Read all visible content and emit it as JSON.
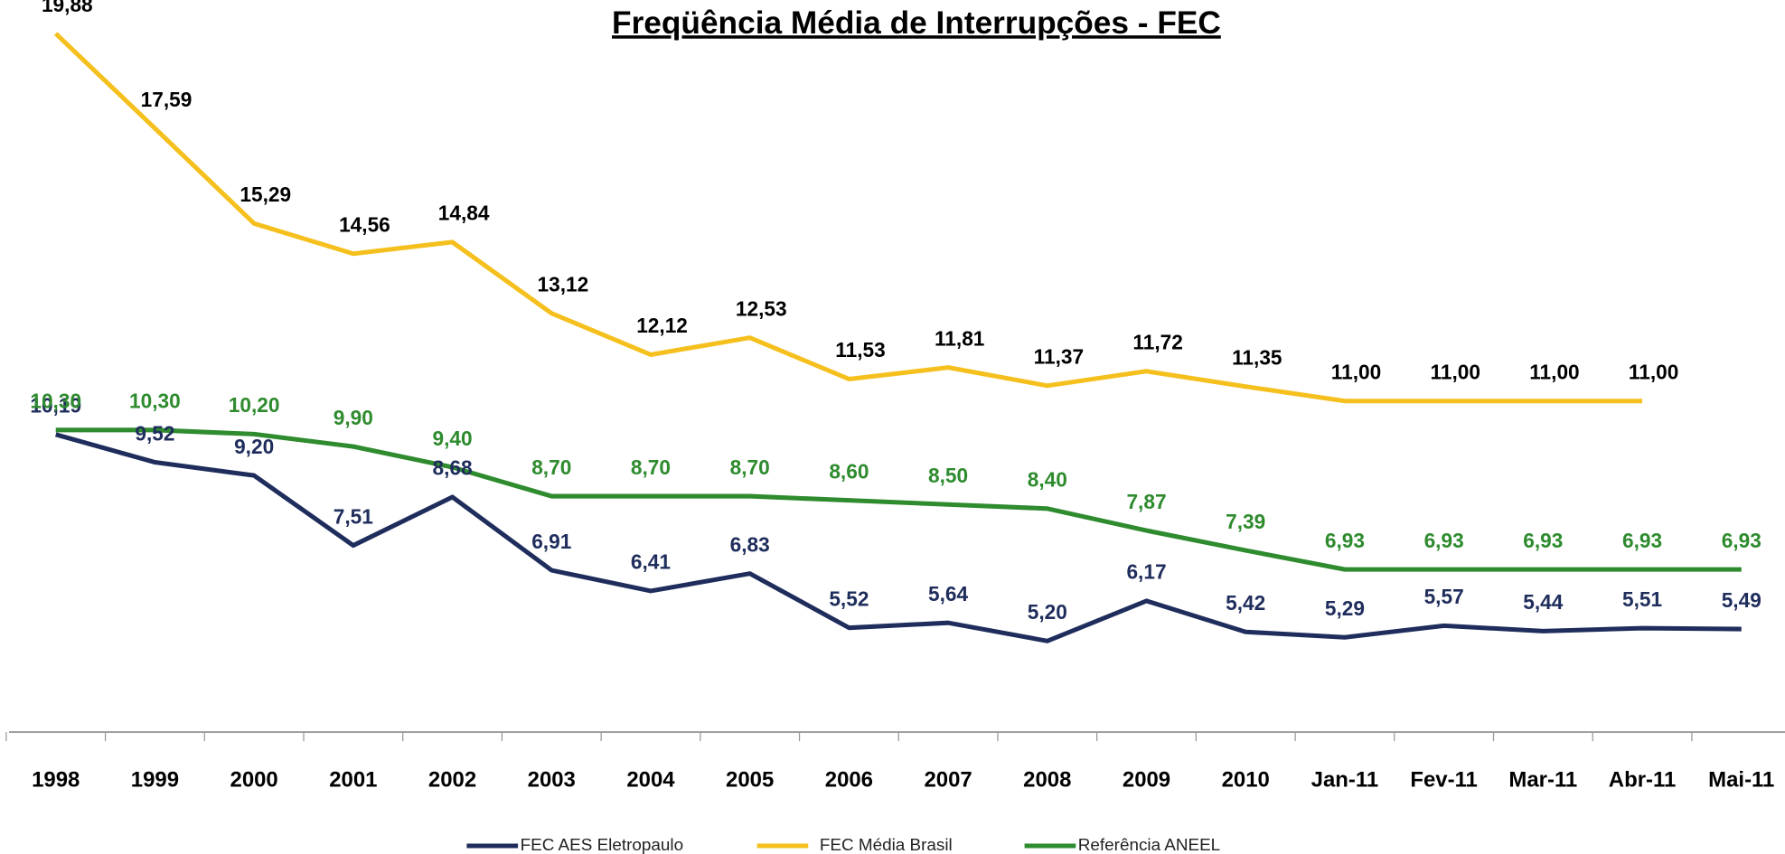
{
  "chart_data": {
    "type": "line",
    "title": "Freqüência Média de Interrupções - FEC",
    "categories": [
      "1998",
      "1999",
      "2000",
      "2001",
      "2002",
      "2003",
      "2004",
      "2005",
      "2006",
      "2007",
      "2008",
      "2009",
      "2010",
      "Jan-11",
      "Fev-11",
      "Mar-11",
      "Abr-11",
      "Mai-11"
    ],
    "ylim": [
      3,
      20
    ],
    "series": [
      {
        "name": "FEC AES Eletropaulo",
        "color": "#1f2d5c",
        "values": [
          10.19,
          9.52,
          9.2,
          7.51,
          8.68,
          6.91,
          6.41,
          6.83,
          5.52,
          5.64,
          5.2,
          6.17,
          5.42,
          5.29,
          5.57,
          5.44,
          5.51,
          5.49
        ],
        "value_labels": [
          "10,19",
          "9,52",
          "9,20",
          "7,51",
          "8,68",
          "6,91",
          "6,41",
          "6,83",
          "5,52",
          "5,64",
          "5,20",
          "6,17",
          "5,42",
          "5,29",
          "5,57",
          "5,44",
          "5,51",
          "5,49"
        ]
      },
      {
        "name": "FEC Média Brasil",
        "color": "#f5c01e",
        "values": [
          19.88,
          17.59,
          15.29,
          14.56,
          14.84,
          13.12,
          12.12,
          12.53,
          11.53,
          11.81,
          11.37,
          11.72,
          11.35,
          11.0,
          11.0,
          11.0,
          11.0,
          null
        ],
        "value_labels": [
          "19,88",
          "17,59",
          "15,29",
          "14,56",
          "14,84",
          "13,12",
          "12,12",
          "12,53",
          "11,53",
          "11,81",
          "11,37",
          "11,72",
          "11,35",
          "11,00",
          "11,00",
          "11,00",
          "11,00",
          null
        ]
      },
      {
        "name": "Referência ANEEL",
        "color": "#2e8b2e",
        "values": [
          10.3,
          10.3,
          10.2,
          9.9,
          9.4,
          8.7,
          8.7,
          8.7,
          8.6,
          8.5,
          8.4,
          7.87,
          7.39,
          6.93,
          6.93,
          6.93,
          6.93,
          6.93
        ],
        "value_labels": [
          "10,30",
          "10,30",
          "10,20",
          "9,90",
          "9,40",
          "8,70",
          "8,70",
          "8,70",
          "8,60",
          "8,50",
          "8,40",
          "7,87",
          "7,39",
          "6,93",
          "6,93",
          "6,93",
          "6,93",
          "6,93"
        ]
      }
    ]
  }
}
